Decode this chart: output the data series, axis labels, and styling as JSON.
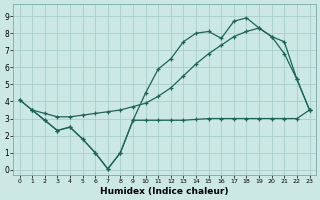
{
  "xlabel": "Humidex (Indice chaleur)",
  "bg_color": "#cce8e5",
  "grid_color": "#a8cecc",
  "line_color": "#1a6458",
  "xlim": [
    -0.5,
    23.5
  ],
  "ylim": [
    -0.3,
    9.7
  ],
  "x_ticks": [
    0,
    1,
    2,
    3,
    4,
    5,
    6,
    7,
    8,
    9,
    10,
    11,
    12,
    13,
    14,
    15,
    16,
    17,
    18,
    19,
    20,
    21,
    22,
    23
  ],
  "y_ticks": [
    0,
    1,
    2,
    3,
    4,
    5,
    6,
    7,
    8,
    9
  ],
  "curve1_x": [
    0,
    1,
    2,
    3,
    4,
    5,
    6,
    7,
    8,
    9,
    10,
    11,
    12,
    13,
    14,
    15,
    16,
    17,
    18,
    19,
    20,
    21,
    22,
    23
  ],
  "curve1_y": [
    4.1,
    3.5,
    2.9,
    2.3,
    2.5,
    1.8,
    1.0,
    0.05,
    1.0,
    2.9,
    2.9,
    2.9,
    2.9,
    2.9,
    2.95,
    3.0,
    3.0,
    3.0,
    3.0,
    3.0,
    3.0,
    3.0,
    3.0,
    3.5
  ],
  "curve2_x": [
    0,
    1,
    2,
    3,
    4,
    5,
    6,
    7,
    8,
    9,
    10,
    11,
    12,
    13,
    14,
    15,
    16,
    17,
    18,
    19,
    20,
    21,
    22,
    23
  ],
  "curve2_y": [
    4.1,
    3.5,
    2.9,
    2.3,
    2.5,
    1.8,
    1.0,
    0.05,
    1.0,
    2.9,
    4.5,
    5.9,
    6.5,
    7.5,
    8.0,
    8.1,
    7.7,
    8.7,
    8.9,
    8.3,
    7.8,
    6.8,
    5.3,
    3.5
  ],
  "curve3_x": [
    1,
    2,
    3,
    4,
    5,
    6,
    7,
    8,
    9,
    10,
    11,
    12,
    13,
    14,
    15,
    16,
    17,
    18,
    19,
    20,
    21,
    22,
    23
  ],
  "curve3_y": [
    3.5,
    3.3,
    3.1,
    3.1,
    3.2,
    3.3,
    3.4,
    3.5,
    3.7,
    3.9,
    4.3,
    4.8,
    5.5,
    6.2,
    6.8,
    7.3,
    7.8,
    8.1,
    8.3,
    7.8,
    7.5,
    5.3,
    3.5
  ]
}
